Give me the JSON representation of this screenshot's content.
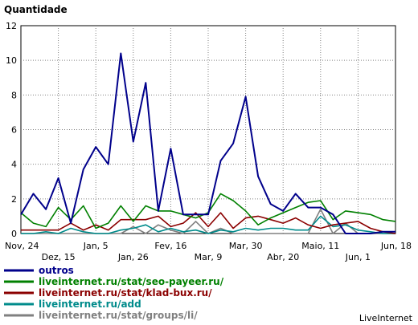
{
  "chart_data": {
    "type": "line",
    "title": "Quantidade",
    "ylim": [
      0,
      12
    ],
    "yticks": [
      0,
      2,
      4,
      6,
      8,
      10,
      12
    ],
    "grid": true,
    "legend_position": "bottom-left",
    "x_count": 31,
    "xtick_labels": [
      {
        "i": 0,
        "label": "Nov, 24",
        "row": 1
      },
      {
        "i": 3,
        "label": "Dez, 15",
        "row": 2
      },
      {
        "i": 6,
        "label": "Jan, 5",
        "row": 1
      },
      {
        "i": 9,
        "label": "Jan, 26",
        "row": 2
      },
      {
        "i": 12,
        "label": "Fev, 16",
        "row": 1
      },
      {
        "i": 15,
        "label": "Mar, 9",
        "row": 2
      },
      {
        "i": 18,
        "label": "Mar, 30",
        "row": 1
      },
      {
        "i": 21,
        "label": "Abr, 20",
        "row": 2
      },
      {
        "i": 24,
        "label": "Maio, 11",
        "row": 1
      },
      {
        "i": 27,
        "label": "Jun, 1",
        "row": 2
      },
      {
        "i": 30,
        "label": "Jun, 18",
        "row": 1
      }
    ],
    "series": [
      {
        "name": "outros",
        "color": "#00008b",
        "values": [
          1.1,
          2.3,
          1.4,
          3.2,
          0.6,
          3.7,
          5.0,
          4.0,
          10.4,
          5.3,
          8.7,
          1.3,
          4.9,
          1.1,
          1.1,
          1.1,
          4.2,
          5.2,
          7.9,
          3.3,
          1.7,
          1.3,
          2.3,
          1.5,
          1.5,
          1.1,
          0.0,
          0.0,
          0.0,
          0.1,
          0.1
        ]
      },
      {
        "name": "liveinternet.ru/stat/seo-payeer.ru/",
        "color": "#008000",
        "values": [
          1.2,
          0.6,
          0.4,
          1.5,
          0.8,
          1.6,
          0.3,
          0.6,
          1.6,
          0.7,
          1.6,
          1.3,
          1.3,
          1.1,
          0.9,
          1.2,
          2.3,
          1.9,
          1.3,
          0.5,
          0.9,
          1.2,
          1.5,
          1.8,
          1.9,
          0.8,
          1.3,
          1.2,
          1.1,
          0.8,
          0.7
        ]
      },
      {
        "name": "liveinternet.ru/stat/klad-bux.ru/",
        "color": "#8b0000",
        "values": [
          0.2,
          0.2,
          0.2,
          0.2,
          0.6,
          0.2,
          0.5,
          0.2,
          0.8,
          0.8,
          0.8,
          1.0,
          0.4,
          0.6,
          1.2,
          0.4,
          1.2,
          0.3,
          0.9,
          1.0,
          0.8,
          0.6,
          0.9,
          0.5,
          0.3,
          0.5,
          0.6,
          0.7,
          0.3,
          0.1,
          0.0
        ]
      },
      {
        "name": "liveinternet.ru/add",
        "color": "#008b8b",
        "values": [
          0.0,
          0.0,
          0.1,
          0.0,
          0.3,
          0.1,
          0.0,
          0.0,
          0.2,
          0.3,
          0.5,
          0.1,
          0.3,
          0.1,
          0.2,
          0.0,
          0.2,
          0.1,
          0.3,
          0.2,
          0.3,
          0.3,
          0.2,
          0.2,
          1.0,
          0.4,
          0.5,
          0.2,
          0.1,
          0.0,
          0.0
        ]
      },
      {
        "name": "liveinternet.ru/stat/groups/li/",
        "color": "#808080",
        "values": [
          0.0,
          0.0,
          0.0,
          0.0,
          0.0,
          0.0,
          0.0,
          0.0,
          0.0,
          0.4,
          0.0,
          0.5,
          0.2,
          0.0,
          0.7,
          0.0,
          0.3,
          0.0,
          0.0,
          0.0,
          0.0,
          0.0,
          0.0,
          0.0,
          1.4,
          0.0,
          0.6,
          0.0,
          0.0,
          0.0,
          0.0
        ]
      }
    ]
  },
  "footer": {
    "brand": "LiveInternet"
  }
}
